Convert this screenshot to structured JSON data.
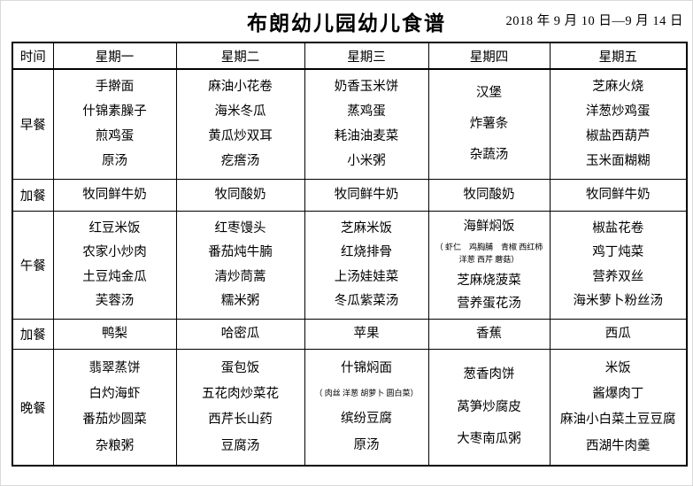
{
  "title": "布朗幼儿园幼儿食谱",
  "date_range": "2018 年 9 月 10 日—9 月 14 日",
  "table": {
    "corner_header": "时间",
    "day_headers": [
      "星期一",
      "星期二",
      "星期三",
      "星期四",
      "星期五"
    ],
    "rows": [
      {
        "meal": "早餐",
        "cells": [
          [
            "手擀面",
            "什锦素臊子",
            "煎鸡蛋",
            "原汤"
          ],
          [
            "麻油小花卷",
            "海米冬瓜",
            "黄瓜炒双耳",
            "疙瘩汤"
          ],
          [
            "奶香玉米饼",
            "蒸鸡蛋",
            "耗油油麦菜",
            "小米粥"
          ],
          [
            "汉堡",
            "炸薯条",
            "杂蔬汤"
          ],
          [
            "芝麻火烧",
            "洋葱炒鸡蛋",
            "椒盐西葫芦",
            "玉米面糊糊"
          ]
        ]
      },
      {
        "meal": "加餐",
        "cells": [
          [
            "牧同鲜牛奶"
          ],
          [
            "牧同酸奶"
          ],
          [
            "牧同鲜牛奶"
          ],
          [
            "牧同酸奶"
          ],
          [
            "牧同鲜牛奶"
          ]
        ]
      },
      {
        "meal": "午餐",
        "cells": [
          [
            "红豆米饭",
            "农家小炒肉",
            "土豆炖金瓜",
            "芙蓉汤"
          ],
          [
            "红枣馒头",
            "番茄炖牛腩",
            "清炒茼蒿",
            "糯米粥"
          ],
          [
            "芝麻米饭",
            "红烧排骨",
            "上汤娃娃菜",
            "冬瓜紫菜汤"
          ],
          [
            "海鲜焖饭",
            {
              "text": "（ 虾仁　鸡胸脯　青椒  西红柿 洋葱  西芹  蘑菇）",
              "small": true
            },
            "芝麻烧菠菜",
            "营养蛋花汤"
          ],
          [
            "椒盐花卷",
            "鸡丁炖菜",
            "营养双丝",
            "海米萝卜粉丝汤"
          ]
        ]
      },
      {
        "meal": "加餐",
        "cells": [
          [
            "鸭梨"
          ],
          [
            "哈密瓜"
          ],
          [
            "苹果"
          ],
          [
            "香蕉"
          ],
          [
            "西瓜"
          ]
        ]
      },
      {
        "meal": "晚餐",
        "cells": [
          [
            "翡翠蒸饼",
            "白灼海虾",
            "番茄炒圆菜",
            "杂粮粥"
          ],
          [
            "蛋包饭",
            "五花肉炒菜花",
            "西芹长山药",
            "豆腐汤"
          ],
          [
            "什锦焖面",
            {
              "text": "（ 肉丝  洋葱  胡萝卜  圆白菜）",
              "small": true
            },
            "缤纷豆腐",
            "原汤"
          ],
          [
            "葱香肉饼",
            "莴笋炒腐皮",
            "大枣南瓜粥"
          ],
          [
            "米饭",
            "酱爆肉丁",
            "麻油小白菜土豆豆腐",
            "西湖牛肉羹"
          ]
        ]
      }
    ]
  }
}
